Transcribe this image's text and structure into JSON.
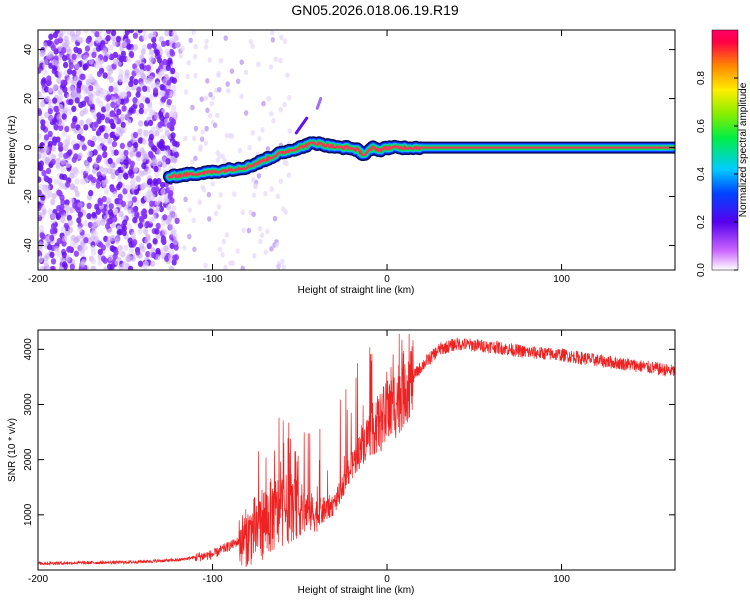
{
  "title": "GN05.2026.018.06.19.R19",
  "chart_data": [
    {
      "type": "heatmap",
      "xlabel": "Height of straight line (km)",
      "ylabel": "Frequency (Hz)",
      "xlim": [
        -200,
        165
      ],
      "ylim": [
        -50,
        48
      ],
      "xticks": [
        -200,
        -100,
        0,
        100
      ],
      "xtick_labels": [
        "-200",
        "-100",
        "0",
        "100"
      ],
      "yticks": [
        -40,
        -20,
        0,
        20,
        40
      ],
      "ytick_labels": [
        "-40",
        "-20",
        "0",
        "20",
        "40"
      ],
      "colorbar": {
        "label": "Normalized spectral amplitude",
        "range": [
          0,
          1
        ],
        "ticks": [
          0.0,
          0.2,
          0.4,
          0.6,
          0.8
        ],
        "tick_labels": [
          "0.0",
          "0.2",
          "0.4",
          "0.6",
          "0.8"
        ]
      },
      "ridge_line": {
        "description": "dominant frequency track",
        "x": [
          -125,
          -115,
          -100,
          -90,
          -80,
          -70,
          -60,
          -50,
          -42,
          -35,
          -28,
          -22,
          -17,
          -13,
          -8,
          -4,
          0,
          5,
          10,
          20,
          40,
          80,
          120,
          165
        ],
        "y": [
          -12,
          -11,
          -10,
          -9,
          -8,
          -5,
          -2,
          0,
          2,
          1,
          0,
          0,
          -1,
          -3,
          0,
          -1,
          0,
          0,
          0,
          0,
          0,
          0,
          0,
          0
        ]
      },
      "noise_region_x": [
        -200,
        -120
      ]
    },
    {
      "type": "line",
      "xlabel": "Height of straight line (km)",
      "ylabel": "SNR (10 * v/v)",
      "xlim": [
        -200,
        165
      ],
      "ylim": [
        0,
        4350
      ],
      "xticks": [
        -200,
        -100,
        0,
        100
      ],
      "xtick_labels": [
        "-200",
        "-100",
        "0",
        "100"
      ],
      "yticks": [
        1000,
        2000,
        3000,
        4000
      ],
      "ytick_labels": [
        "1000",
        "2000",
        "3000",
        "4000"
      ],
      "color": "#ee2222",
      "trend": {
        "x": [
          -200,
          -150,
          -120,
          -100,
          -80,
          -70,
          -60,
          -50,
          -40,
          -30,
          -20,
          -10,
          0,
          10,
          20,
          30,
          40,
          60,
          80,
          100,
          120,
          140,
          165
        ],
        "y": [
          120,
          140,
          180,
          280,
          600,
          900,
          1100,
          1100,
          1000,
          1200,
          1900,
          2500,
          2800,
          3300,
          3700,
          4000,
          4100,
          4050,
          3950,
          3900,
          3800,
          3720,
          3600
        ]
      }
    }
  ]
}
